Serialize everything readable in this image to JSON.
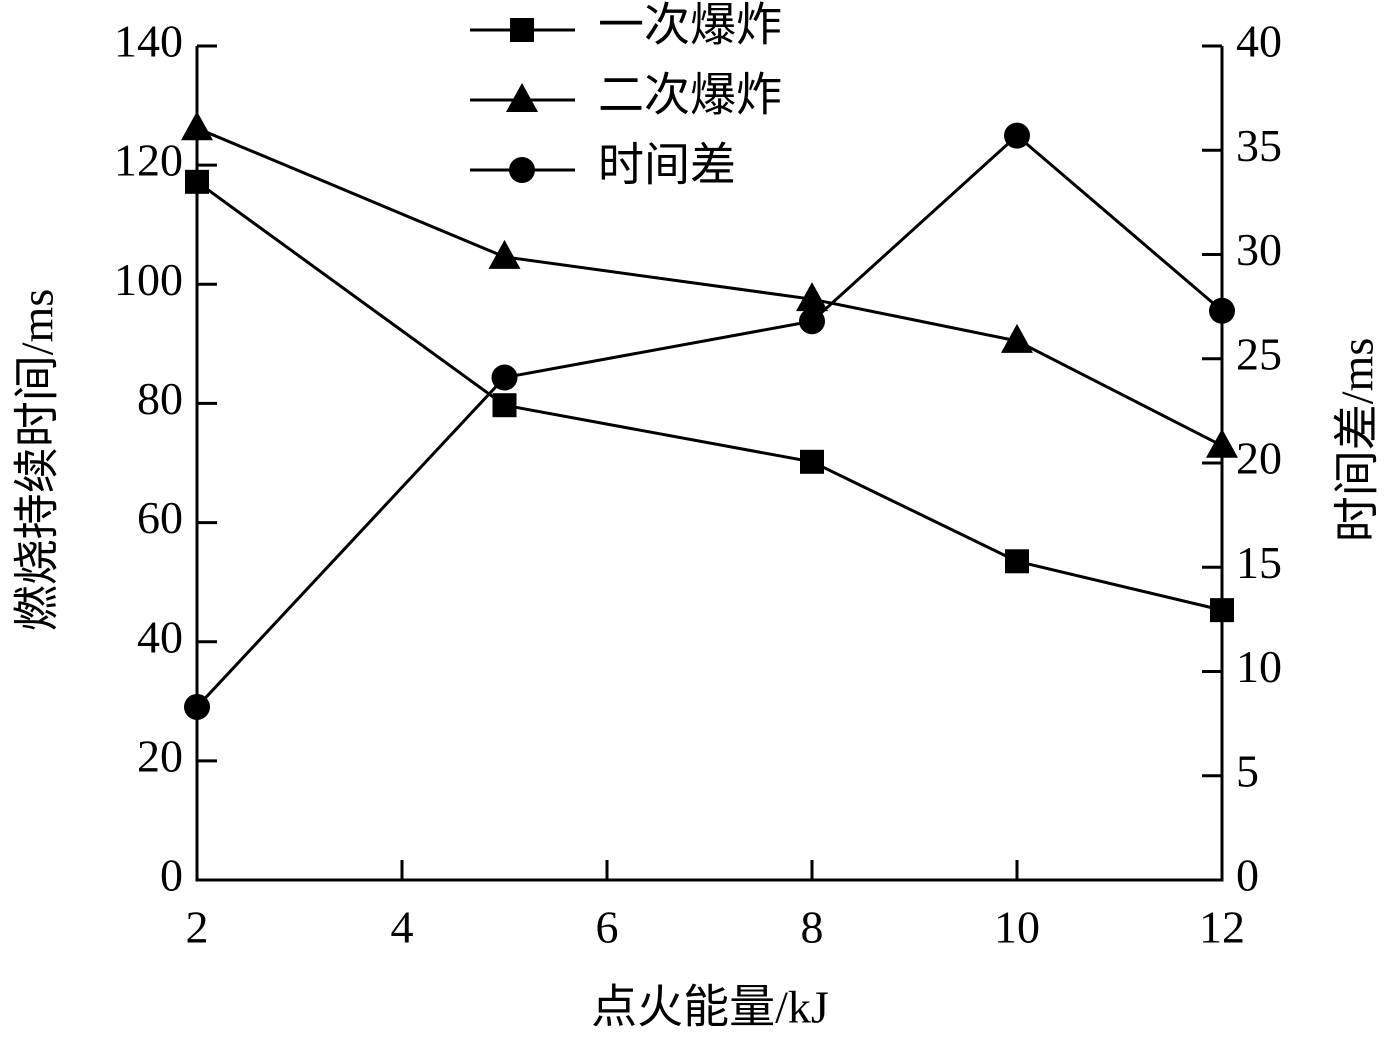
{
  "chart_data": {
    "type": "line",
    "x_label": "点火能量/kJ",
    "y_label": "燃烧持续时间/ms",
    "y2_label": "时间差/ms",
    "x": [
      2,
      5,
      8,
      10,
      12
    ],
    "xlim": [
      2,
      12
    ],
    "xticks": [
      2,
      4,
      6,
      8,
      10,
      12
    ],
    "ylim": [
      0,
      140
    ],
    "yticks": [
      0,
      20,
      40,
      60,
      80,
      100,
      120,
      140
    ],
    "y2lim": [
      0,
      40
    ],
    "y2ticks": [
      0,
      5,
      10,
      15,
      20,
      25,
      30,
      35,
      40
    ],
    "legend": "top",
    "series": [
      {
        "name": "一次爆炸",
        "color": "#000000",
        "marker": "square",
        "values": [
          117.2,
          79.7,
          70.2,
          53.5,
          45.3
        ]
      },
      {
        "name": "二次爆炸",
        "color": "#000000",
        "marker": "triangle",
        "values": [
          126.2,
          104.6,
          97.5,
          90.5,
          72.9
        ]
      },
      {
        "name": "时间差",
        "color": "#000000",
        "marker": "circle",
        "axis": "y2",
        "values": [
          8.3,
          24.1,
          26.8,
          35.7,
          27.3
        ]
      }
    ]
  }
}
